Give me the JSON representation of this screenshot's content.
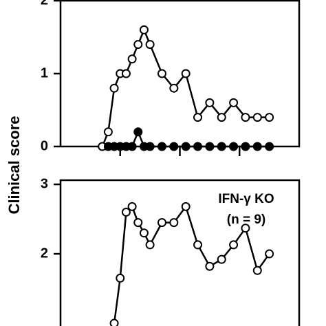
{
  "chart_data": [
    {
      "type": "line",
      "ylabel": "Clinical score",
      "xlim": [
        0,
        40
      ],
      "xticks": [
        10,
        20,
        30
      ],
      "ylim": [
        0,
        2
      ],
      "yticks": [
        0,
        1,
        2
      ],
      "series": [
        {
          "marker": "open",
          "color": "#000",
          "x": [
            7,
            8,
            9,
            10,
            11,
            12,
            13,
            14,
            15,
            17,
            19,
            21,
            23,
            25,
            27,
            29,
            31,
            33,
            35
          ],
          "values": [
            0,
            0.2,
            0.8,
            1.0,
            1.0,
            1.2,
            1.4,
            1.6,
            1.4,
            1.0,
            0.8,
            1.0,
            0.4,
            0.6,
            0.4,
            0.6,
            0.4,
            0.4,
            0.4
          ]
        },
        {
          "marker": "filled",
          "color": "#000",
          "x": [
            8,
            9,
            10,
            11,
            12,
            13,
            14,
            15,
            17,
            19,
            21,
            23,
            25,
            27,
            29,
            31,
            33,
            35
          ],
          "values": [
            0,
            0,
            0,
            0,
            0,
            0.2,
            0,
            0,
            0,
            0,
            0,
            0,
            0,
            0,
            0,
            0,
            0,
            0
          ]
        }
      ]
    },
    {
      "type": "line",
      "annotation": [
        "IFN-γ KO",
        "(n = 9)"
      ],
      "xlim": [
        0,
        40
      ],
      "ylim": [
        0.95,
        3.06
      ],
      "yticks": [
        2,
        3
      ],
      "series": [
        {
          "marker": "open",
          "color": "#000",
          "x": [
            9,
            10,
            11,
            12,
            13,
            14,
            15,
            17,
            19,
            21,
            23,
            25,
            27,
            29,
            31,
            33,
            35
          ],
          "values": [
            1.0,
            1.65,
            2.6,
            2.68,
            2.45,
            2.3,
            2.13,
            2.45,
            2.45,
            2.68,
            2.13,
            1.82,
            1.92,
            2.13,
            2.37,
            1.76,
            2.0
          ]
        }
      ]
    }
  ]
}
